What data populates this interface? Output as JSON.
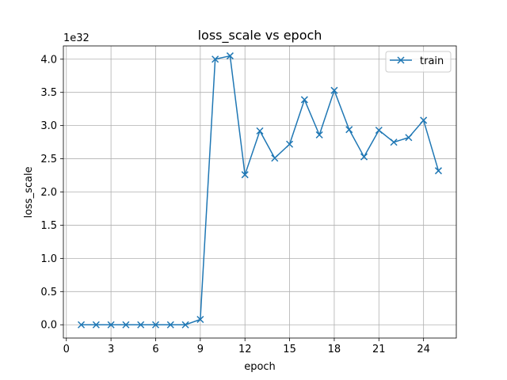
{
  "chart_data": {
    "type": "line",
    "title": "loss_scale vs epoch",
    "xlabel": "epoch",
    "ylabel": "loss_scale",
    "y_multiplier": "1e32",
    "xlim": [
      -0.2,
      26.2
    ],
    "ylim": [
      -0.2,
      4.2
    ],
    "xticks": [
      0,
      3,
      6,
      9,
      12,
      15,
      18,
      21,
      24
    ],
    "xtick_labels": [
      "0",
      "3",
      "6",
      "9",
      "12",
      "15",
      "18",
      "21",
      "24"
    ],
    "yticks": [
      0.0,
      0.5,
      1.0,
      1.5,
      2.0,
      2.5,
      3.0,
      3.5,
      4.0
    ],
    "ytick_labels": [
      "0.0",
      "0.5",
      "1.0",
      "1.5",
      "2.0",
      "2.5",
      "3.0",
      "3.5",
      "4.0"
    ],
    "grid": true,
    "legend_position": "top-right",
    "series": [
      {
        "name": "train",
        "color": "#1f77b4",
        "marker": "x",
        "x": [
          1,
          2,
          3,
          4,
          5,
          6,
          7,
          8,
          9,
          10,
          11,
          12,
          13,
          14,
          15,
          16,
          17,
          18,
          19,
          20,
          21,
          22,
          23,
          24,
          25
        ],
        "y": [
          0,
          0,
          0,
          0,
          0,
          0,
          0,
          0,
          0.08,
          4.0,
          4.05,
          2.26,
          2.92,
          2.51,
          2.72,
          3.39,
          2.86,
          3.53,
          2.94,
          2.53,
          2.93,
          2.75,
          2.82,
          3.08,
          2.32
        ]
      }
    ]
  }
}
